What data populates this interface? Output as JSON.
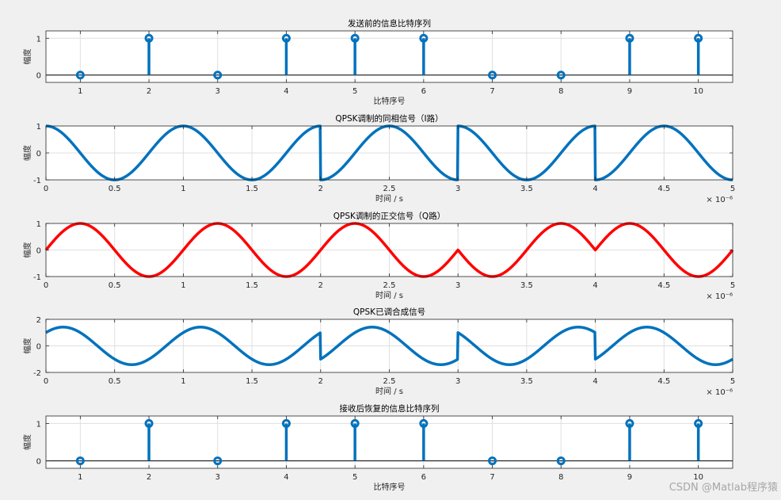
{
  "watermark": "CSDN @Matlab程序猿",
  "colors": {
    "blue": "#0072bd",
    "red": "#ff0000",
    "grid": "#dfdfdf",
    "axis": "#262626",
    "figure_bg": "#f0f0f0",
    "plot_bg": "#ffffff"
  },
  "chart_data": [
    {
      "type": "stem",
      "title": "发送前的信息比特序列",
      "xlabel": "比特序号",
      "ylabel": "幅度",
      "x": [
        1,
        2,
        3,
        4,
        5,
        6,
        7,
        8,
        9,
        10
      ],
      "values": [
        0,
        1,
        0,
        1,
        1,
        1,
        0,
        0,
        1,
        1
      ],
      "xlim": [
        0.5,
        10.5
      ],
      "ylim": [
        -0.2,
        1.2
      ],
      "xticks": [
        1,
        2,
        3,
        4,
        5,
        6,
        7,
        8,
        9,
        10
      ],
      "yticks": [
        0,
        1
      ],
      "grid": true,
      "color": "#0072bd"
    },
    {
      "type": "line",
      "title": "QPSK调制的同相信号（I路）",
      "xlabel": "时间 / s",
      "ylabel": "幅度",
      "exponent": "× 10⁻⁶",
      "x_unit_multiplier": 1e-06,
      "bits": [
        0,
        1,
        0,
        1,
        1,
        1,
        0,
        0,
        1,
        1
      ],
      "component": "I",
      "xlim": [
        0,
        5
      ],
      "ylim": [
        -1,
        1
      ],
      "xticks": [
        0,
        0.5,
        1,
        1.5,
        2,
        2.5,
        3,
        3.5,
        4,
        4.5,
        5
      ],
      "yticks": [
        -1,
        0,
        1
      ],
      "grid": true,
      "color": "#0072bd"
    },
    {
      "type": "line",
      "title": "QPSK调制的正交信号（Q路）",
      "xlabel": "时间 / s",
      "ylabel": "幅度",
      "exponent": "× 10⁻⁶",
      "x_unit_multiplier": 1e-06,
      "bits": [
        0,
        1,
        0,
        1,
        1,
        1,
        0,
        0,
        1,
        1
      ],
      "component": "Q",
      "xlim": [
        0,
        5
      ],
      "ylim": [
        -1,
        1
      ],
      "xticks": [
        0,
        0.5,
        1,
        1.5,
        2,
        2.5,
        3,
        3.5,
        4,
        4.5,
        5
      ],
      "yticks": [
        -1,
        0,
        1
      ],
      "grid": true,
      "color": "#ff0000"
    },
    {
      "type": "line",
      "title": "QPSK已调合成信号",
      "xlabel": "时间 / s",
      "ylabel": "幅度",
      "exponent": "× 10⁻⁶",
      "x_unit_multiplier": 1e-06,
      "bits": [
        0,
        1,
        0,
        1,
        1,
        1,
        0,
        0,
        1,
        1
      ],
      "component": "IQ",
      "xlim": [
        0,
        5
      ],
      "ylim": [
        -2,
        2
      ],
      "xticks": [
        0,
        0.5,
        1,
        1.5,
        2,
        2.5,
        3,
        3.5,
        4,
        4.5,
        5
      ],
      "yticks": [
        -2,
        0,
        2
      ],
      "grid": true,
      "color": "#0072bd"
    },
    {
      "type": "stem",
      "title": "接收后恢复的信息比特序列",
      "xlabel": "比特序号",
      "ylabel": "幅度",
      "x": [
        1,
        2,
        3,
        4,
        5,
        6,
        7,
        8,
        9,
        10
      ],
      "values": [
        0,
        1,
        0,
        1,
        1,
        1,
        0,
        0,
        1,
        1
      ],
      "xlim": [
        0.5,
        10.5
      ],
      "ylim": [
        -0.2,
        1.2
      ],
      "xticks": [
        1,
        2,
        3,
        4,
        5,
        6,
        7,
        8,
        9,
        10
      ],
      "yticks": [
        0,
        1
      ],
      "grid": true,
      "color": "#0072bd"
    }
  ]
}
